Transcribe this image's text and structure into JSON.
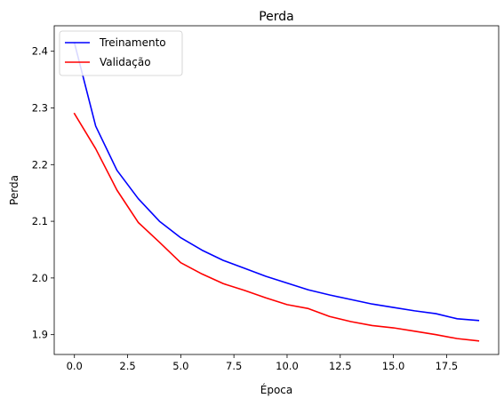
{
  "chart_data": {
    "type": "line",
    "title": "Perda",
    "xlabel": "Época",
    "ylabel": "Perda",
    "xlim": [
      -0.95,
      19.95
    ],
    "ylim": [
      1.865,
      2.445
    ],
    "xticks": [
      0.0,
      2.5,
      5.0,
      7.5,
      10.0,
      12.5,
      15.0,
      17.5
    ],
    "xtick_labels": [
      "0.0",
      "2.5",
      "5.0",
      "7.5",
      "10.0",
      "12.5",
      "15.0",
      "17.5"
    ],
    "yticks": [
      1.9,
      2.0,
      2.1,
      2.2,
      2.3,
      2.4
    ],
    "ytick_labels": [
      "1.9",
      "2.0",
      "2.1",
      "2.2",
      "2.3",
      "2.4"
    ],
    "grid": false,
    "legend_position": "upper left",
    "x": [
      0,
      1,
      2,
      3,
      4,
      5,
      6,
      7,
      8,
      9,
      10,
      11,
      12,
      13,
      14,
      15,
      16,
      17,
      18,
      19
    ],
    "series": [
      {
        "name": "Treinamento",
        "color": "#0000ff",
        "values": [
          2.415,
          2.268,
          2.19,
          2.14,
          2.1,
          2.071,
          2.049,
          2.031,
          2.017,
          2.003,
          1.991,
          1.979,
          1.97,
          1.962,
          1.954,
          1.948,
          1.942,
          1.937,
          1.928,
          1.925
        ]
      },
      {
        "name": "Validação",
        "color": "#ff0000",
        "values": [
          2.29,
          2.228,
          2.155,
          2.098,
          2.063,
          2.027,
          2.007,
          1.99,
          1.978,
          1.965,
          1.953,
          1.946,
          1.932,
          1.923,
          1.916,
          1.912,
          1.906,
          1.9,
          1.893,
          1.889
        ]
      }
    ]
  }
}
